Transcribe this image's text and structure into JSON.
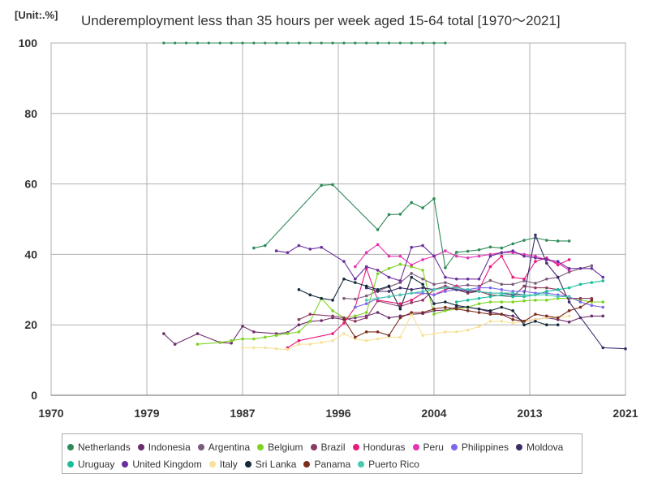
{
  "chart_data": {
    "type": "line",
    "title": "Underemployment less than 35 hours per week aged 15-64 total [1970～2021]",
    "unit": "[Unit:.%]",
    "xlim": [
      1970,
      2021
    ],
    "ylim": [
      0,
      100
    ],
    "x_ticks": [
      {
        "value": 1970,
        "label": "1970"
      },
      {
        "value": 1978.5,
        "label": "1979"
      },
      {
        "value": 1987,
        "label": "1987"
      },
      {
        "value": 1995.5,
        "label": "1996"
      },
      {
        "value": 2004,
        "label": "2004"
      },
      {
        "value": 2012.5,
        "label": "2013"
      },
      {
        "value": 2021,
        "label": "2021"
      }
    ],
    "y_ticks": [
      0,
      20,
      40,
      60,
      80,
      100
    ],
    "series": [
      {
        "name": "Netherlands",
        "color": "#2e8b57",
        "x": [
          1988,
          1989,
          1994,
          1995,
          1999,
          2000,
          2001,
          2002,
          2003,
          2004,
          2005,
          2006,
          2007,
          2008,
          2009,
          2010,
          2011,
          2012,
          2013,
          2014,
          2015,
          2016
        ],
        "y": [
          41.8,
          42.5,
          59.6,
          59.8,
          47.0,
          51.3,
          51.4,
          54.7,
          53.2,
          55.8,
          36.2,
          40.6,
          40.9,
          41.3,
          42.1,
          41.8,
          43.0,
          44.0,
          44.7,
          44.0,
          43.8,
          43.8
        ]
      },
      {
        "name": "Indonesia",
        "color": "#6b2d6b",
        "x": [
          1980,
          1981,
          1983,
          1985,
          1986,
          1987,
          1988,
          1990,
          1991,
          1992,
          1993,
          1994,
          1995,
          1996,
          1997,
          1998,
          1999,
          2000,
          2001,
          2002,
          2003,
          2004,
          2005,
          2006,
          2007,
          2008,
          2009,
          2010,
          2011,
          2012,
          2013,
          2014,
          2015,
          2016,
          2017,
          2018,
          2019
        ],
        "y": [
          17.5,
          14.5,
          17.5,
          15.0,
          14.8,
          19.6,
          18.0,
          17.5,
          17.8,
          20.0,
          21.0,
          21.2,
          22.0,
          21.5,
          22.0,
          22.5,
          23.5,
          22.0,
          22.5,
          23.0,
          23.2,
          24.0,
          24.2,
          25.0,
          25.0,
          24.5,
          23.6,
          23.0,
          22.5,
          21.0,
          21.5,
          22.0,
          21.5,
          20.8,
          22.0,
          22.5,
          22.5
        ]
      },
      {
        "name": "Argentina",
        "color": "#7a5c7a",
        "x": [
          1996,
          1997,
          1998,
          1999,
          2000,
          2001,
          2002,
          2003,
          2004,
          2005,
          2006,
          2007,
          2008,
          2009,
          2010,
          2011,
          2012,
          2013,
          2014,
          2015,
          2016,
          2017,
          2018
        ],
        "y": [
          27.5,
          27.3,
          28.2,
          29.6,
          30.8,
          32.0,
          34.6,
          33.0,
          31.5,
          32.0,
          31.0,
          31.3,
          31.0,
          32.6,
          31.5,
          31.5,
          32.5,
          31.8,
          33.0,
          33.5,
          35.0,
          36.0,
          36.8
        ]
      },
      {
        "name": "Belgium",
        "color": "#7ed321",
        "x": [
          1983,
          1985,
          1986,
          1987,
          1988,
          1989,
          1990,
          1991,
          1992,
          1993,
          1994,
          1995,
          1996,
          1997,
          1998,
          1999,
          2000,
          2001,
          2002,
          2003,
          2004,
          2005,
          2006,
          2007,
          2008,
          2009,
          2010,
          2011,
          2012,
          2013,
          2014,
          2015,
          2016,
          2017,
          2018,
          2019
        ],
        "y": [
          14.5,
          15.0,
          15.5,
          16.0,
          16.0,
          16.5,
          17.0,
          17.5,
          18.0,
          21.0,
          27.5,
          24.0,
          22.0,
          22.5,
          23.5,
          34.5,
          36.0,
          37.2,
          36.5,
          35.5,
          23.0,
          24.0,
          24.5,
          25.0,
          26.0,
          26.5,
          26.5,
          26.5,
          26.8,
          27.0,
          27.0,
          27.5,
          27.5,
          27.0,
          26.5,
          26.5
        ]
      },
      {
        "name": "Brazil",
        "color": "#8b3a62",
        "x": [
          1992,
          1993,
          1995,
          1996,
          1997,
          1998,
          1999,
          2001,
          2002,
          2003,
          2004,
          2005,
          2006,
          2007,
          2008,
          2009,
          2011,
          2012,
          2013,
          2014,
          2015,
          2016,
          2017,
          2018
        ],
        "y": [
          21.5,
          23.0,
          22.5,
          22.0,
          21.0,
          22.0,
          26.8,
          25.2,
          26.3,
          27.0,
          30.0,
          31.0,
          30.0,
          29.0,
          29.5,
          28.5,
          28.0,
          31.0,
          30.5,
          30.5,
          30.0,
          27.5,
          27.5,
          27.5
        ]
      },
      {
        "name": "Honduras",
        "color": "#e8197d",
        "x": [
          1991,
          1992,
          1995,
          1996,
          1997,
          1998,
          1999,
          2001,
          2002,
          2003,
          2004,
          2005,
          2006,
          2007,
          2008,
          2009,
          2010,
          2011,
          2012,
          2013,
          2014,
          2015,
          2016
        ],
        "y": [
          13.5,
          15.5,
          17.5,
          20.5,
          25.0,
          36.0,
          27.0,
          26.0,
          27.0,
          29.0,
          28.5,
          30.0,
          31.0,
          29.5,
          30.0,
          36.5,
          39.5,
          33.5,
          33.0,
          38.0,
          39.0,
          37.0,
          38.5
        ]
      },
      {
        "name": "Peru",
        "color": "#e632b4",
        "x": [
          1997,
          1998,
          1999,
          2000,
          2001,
          2002,
          2003,
          2004,
          2005,
          2006,
          2007,
          2008,
          2009,
          2010,
          2011,
          2012,
          2013,
          2014,
          2015,
          2016
        ],
        "y": [
          36.5,
          40.5,
          42.8,
          39.5,
          39.5,
          37.0,
          38.5,
          39.5,
          41.0,
          39.5,
          39.0,
          39.5,
          40.0,
          40.5,
          40.5,
          40.0,
          39.5,
          38.5,
          37.5,
          35.5
        ]
      },
      {
        "name": "Philippines",
        "color": "#7b68ee",
        "x": [
          1997,
          1998,
          1999,
          2000,
          2001,
          2002,
          2003,
          2004,
          2005,
          2006,
          2007,
          2008,
          2009,
          2010,
          2011,
          2012,
          2013,
          2014,
          2015,
          2016,
          2017,
          2018,
          2019
        ],
        "y": [
          25.0,
          26.0,
          27.5,
          28.0,
          28.5,
          29.0,
          29.0,
          28.5,
          29.5,
          30.0,
          30.0,
          30.5,
          30.5,
          30.0,
          29.5,
          29.5,
          29.0,
          29.0,
          28.5,
          28.0,
          26.5,
          25.5,
          25.0
        ]
      },
      {
        "name": "Moldova",
        "color": "#3d2b6b",
        "x": [
          1998,
          1999,
          2000,
          2001,
          2002,
          2003,
          2004,
          2005,
          2006,
          2007,
          2008,
          2009,
          2010,
          2011,
          2012,
          2013,
          2014,
          2015,
          2016,
          2019,
          2021
        ],
        "y": [
          30.5,
          29.5,
          29.5,
          30.5,
          30.0,
          30.5,
          30.0,
          30.5,
          30.0,
          29.5,
          29.5,
          29.0,
          29.0,
          28.5,
          28.5,
          45.5,
          37.5,
          33.5,
          26.5,
          13.5,
          13.2
        ]
      },
      {
        "name": "Uruguay",
        "color": "#1abc9c",
        "x": [
          2006,
          2007,
          2008,
          2009,
          2010,
          2011,
          2012,
          2013,
          2014,
          2015,
          2016,
          2017,
          2018,
          2019
        ],
        "y": [
          26.5,
          27.0,
          27.5,
          28.0,
          28.5,
          28.0,
          28.0,
          28.5,
          29.5,
          30.0,
          30.5,
          31.5,
          32.0,
          32.5
        ]
      },
      {
        "name": "United Kingdom",
        "color": "#6a2f9e",
        "x": [
          1990,
          1991,
          1992,
          1993,
          1994,
          1996,
          1997,
          1998,
          1999,
          2000,
          2001,
          2002,
          2003,
          2004,
          2005,
          2006,
          2007,
          2008,
          2009,
          2010,
          2011,
          2012,
          2013,
          2014,
          2015,
          2016,
          2017,
          2018,
          2019
        ],
        "y": [
          41.0,
          40.5,
          42.5,
          41.5,
          42.0,
          38.0,
          33.0,
          36.5,
          35.5,
          33.5,
          32.5,
          42.0,
          42.5,
          39.5,
          33.5,
          33.0,
          33.0,
          33.0,
          39.5,
          40.5,
          41.0,
          39.5,
          39.0,
          38.5,
          38.0,
          36.0,
          36.0,
          36.0,
          33.5
        ]
      },
      {
        "name": "Italy",
        "color": "#f7e199",
        "x": [
          1987,
          1988,
          1989,
          1990,
          1991,
          1992,
          1993,
          1994,
          1995,
          1996,
          1997,
          1998,
          1999,
          2000,
          2001,
          2002,
          2003,
          2004,
          2005,
          2006,
          2007,
          2008,
          2009,
          2010,
          2011,
          2012,
          2013,
          2014,
          2015,
          2016
        ],
        "y": [
          13.5,
          13.5,
          13.5,
          13.2,
          13.0,
          14.5,
          14.5,
          15.0,
          15.5,
          17.5,
          16.0,
          15.5,
          16.0,
          16.5,
          16.5,
          23.0,
          17.0,
          17.5,
          18.0,
          18.0,
          18.5,
          19.5,
          21.0,
          21.0,
          20.5,
          21.0,
          21.5,
          22.0,
          22.0,
          22.5
        ]
      },
      {
        "name": "Sri Lanka",
        "color": "#152a3b",
        "x": [
          1992,
          1993,
          1994,
          1995,
          1996,
          1997,
          1998,
          1999,
          2000,
          2001,
          2002,
          2003,
          2004,
          2005,
          2006,
          2007,
          2008,
          2009,
          2010,
          2011,
          2012,
          2013,
          2014,
          2015
        ],
        "y": [
          30.0,
          28.5,
          27.5,
          27.0,
          33.0,
          32.0,
          31.0,
          30.0,
          31.0,
          24.5,
          33.5,
          31.5,
          26.0,
          26.5,
          25.5,
          25.0,
          24.5,
          24.0,
          25.0,
          24.0,
          20.0,
          21.0,
          20.0,
          20.0
        ]
      },
      {
        "name": "Panama",
        "color": "#7b2c1c",
        "x": [
          1996,
          1997,
          1998,
          1999,
          2000,
          2001,
          2002,
          2003,
          2004,
          2005,
          2006,
          2007,
          2008,
          2009,
          2010,
          2011,
          2012,
          2013,
          2014,
          2015,
          2016,
          2017,
          2018
        ],
        "y": [
          21.5,
          16.5,
          18.0,
          18.0,
          17.0,
          22.0,
          23.5,
          23.5,
          24.5,
          25.0,
          24.5,
          24.0,
          23.5,
          23.0,
          23.0,
          21.5,
          21.0,
          23.0,
          22.5,
          22.0,
          24.0,
          25.0,
          27.0
        ]
      },
      {
        "name": "Puerto Rico",
        "color": "#48c9b0",
        "x": [
          1998,
          1999,
          2000,
          2001,
          2002,
          2003,
          2004,
          2005,
          2006,
          2007,
          2008,
          2009,
          2010,
          2011,
          2012,
          2013,
          2014,
          2015,
          2016
        ],
        "y": [
          27.0,
          27.5,
          28.0,
          28.5,
          29.0,
          29.5,
          30.0,
          30.5,
          30.5,
          30.0,
          29.5,
          29.0,
          29.0,
          29.0,
          28.5,
          28.5,
          28.5,
          28.0,
          28.0
        ]
      }
    ],
    "top_markers": [
      {
        "series": "Netherlands",
        "x": [
          1980,
          1981,
          1982,
          1983,
          1984,
          1985,
          1986,
          1987,
          1988,
          1989,
          1990,
          1991,
          1992,
          1993,
          1994,
          1995,
          1996,
          1997,
          1998,
          1999,
          2000,
          2001,
          2002,
          2003,
          2004,
          2005
        ]
      }
    ],
    "legend_position": "bottom"
  }
}
